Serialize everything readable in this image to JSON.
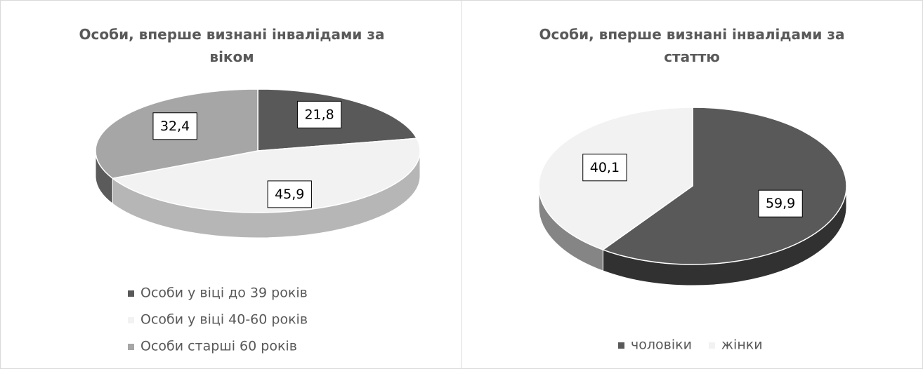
{
  "chart_data": [
    {
      "type": "pie",
      "title": "Особи, вперше визнані інвалідами за віком",
      "categories": [
        "Особи у віці до 39 років",
        "Особи у віці 40-60 років",
        "Особи старші 60 років"
      ],
      "values": [
        21.8,
        45.9,
        32.4
      ],
      "value_labels": [
        "21,8",
        "45,9",
        "32,4"
      ],
      "colors": [
        "#595959",
        "#f2f2f2",
        "#a6a6a6"
      ],
      "legend": "bottom"
    },
    {
      "type": "pie",
      "title": "Особи, вперше визнані інвалідами за статтю",
      "categories": [
        "чоловіки",
        "жінки"
      ],
      "values": [
        59.9,
        40.1
      ],
      "value_labels": [
        "59,9",
        "40,1"
      ],
      "colors": [
        "#595959",
        "#f2f2f2"
      ],
      "legend": "bottom"
    }
  ]
}
